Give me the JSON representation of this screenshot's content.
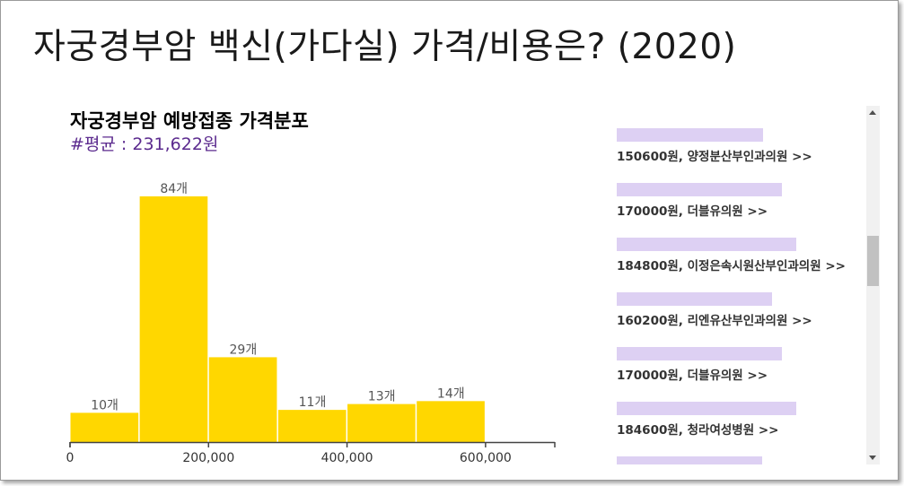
{
  "page": {
    "title": "자궁경부암 백신(가다실) 가격/비용은? (2020)"
  },
  "chart": {
    "title": "자궁경부암 예방접종 가격분포",
    "subtitle": "#평균 : 231,622원"
  },
  "chart_data": {
    "type": "bar",
    "title": "자궁경부암 예방접종 가격분포",
    "bins": [
      {
        "start": 0,
        "end": 100000,
        "count": 10,
        "label": "10개"
      },
      {
        "start": 100000,
        "end": 200000,
        "count": 84,
        "label": "84개"
      },
      {
        "start": 200000,
        "end": 300000,
        "count": 29,
        "label": "29개"
      },
      {
        "start": 300000,
        "end": 400000,
        "count": 11,
        "label": "11개"
      },
      {
        "start": 400000,
        "end": 500000,
        "count": 13,
        "label": "13개"
      },
      {
        "start": 500000,
        "end": 600000,
        "count": 14,
        "label": "14개"
      }
    ],
    "x_ticks": [
      {
        "value": 0,
        "label": "0"
      },
      {
        "value": 200000,
        "label": "200,000"
      },
      {
        "value": 400000,
        "label": "400,000"
      },
      {
        "value": 600000,
        "label": "600,000"
      }
    ],
    "xlim": [
      0,
      700000
    ],
    "ylim": [
      0,
      84
    ],
    "bar_color": "#ffd700",
    "grid": false
  },
  "price_list": {
    "bar_color": "#ddd0f3",
    "bar_max_price": 184800,
    "items": [
      {
        "price": 150600,
        "text": "150600원, 양정분산부인과의원 >>"
      },
      {
        "price": 170000,
        "text": "170000원, 더블유의원 >>"
      },
      {
        "price": 184800,
        "text": "184800원, 이정은속시원산부인과의원 >>"
      },
      {
        "price": 160200,
        "text": "160200원, 리엔유산부인과의원 >>"
      },
      {
        "price": 170000,
        "text": "170000원, 더블유의원 >>"
      },
      {
        "price": 184600,
        "text": "184600원, 청라여성병원 >>"
      },
      {
        "price": 150000,
        "text": ""
      }
    ]
  }
}
